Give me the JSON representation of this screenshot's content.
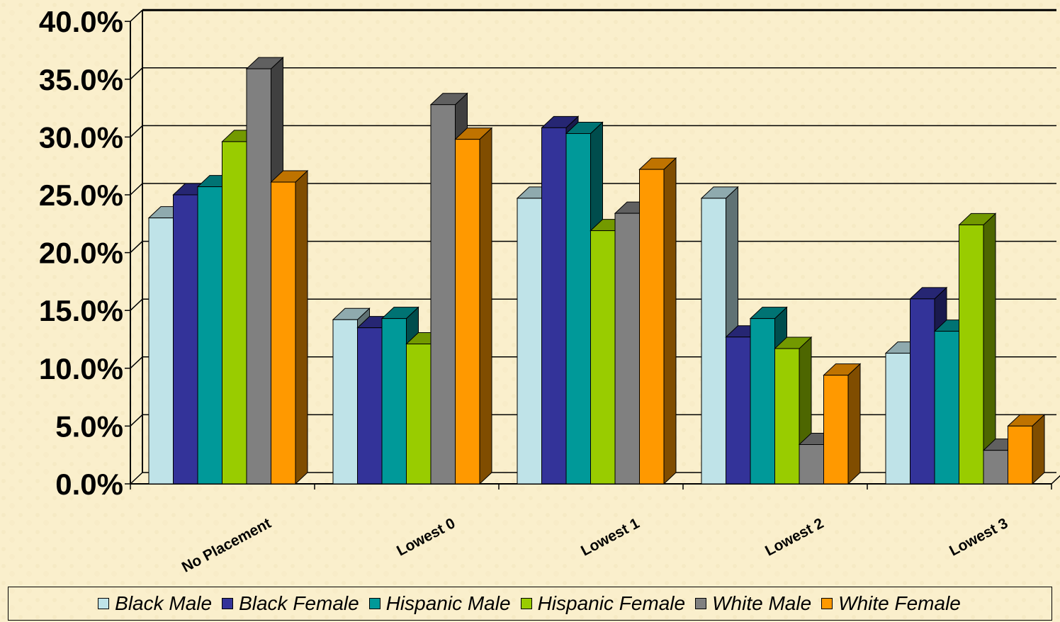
{
  "chart_data": {
    "type": "bar",
    "categories": [
      "No Placement",
      "Lowest 0",
      "Lowest 1",
      "Lowest 2",
      "Lowest 3"
    ],
    "series": [
      {
        "name": "Black Male",
        "color": "#BFE3E8",
        "values": [
          23.0,
          14.2,
          24.7,
          24.7,
          11.3
        ]
      },
      {
        "name": "Black Female",
        "color": "#333399",
        "values": [
          25.0,
          13.5,
          30.8,
          12.7,
          16.0
        ]
      },
      {
        "name": "Hispanic Male",
        "color": "#009999",
        "values": [
          25.7,
          14.3,
          30.3,
          14.3,
          13.2
        ]
      },
      {
        "name": "Hispanic Female",
        "color": "#99CC00",
        "values": [
          29.6,
          12.1,
          21.9,
          11.7,
          22.4
        ]
      },
      {
        "name": "White Male",
        "color": "#808080",
        "values": [
          35.9,
          32.8,
          23.4,
          3.4,
          2.9
        ]
      },
      {
        "name": "White Female",
        "color": "#FF9900",
        "values": [
          26.1,
          29.8,
          27.2,
          9.4,
          5.0
        ]
      }
    ],
    "y_ticks": [
      "0.0%",
      "5.0%",
      "10.0%",
      "15.0%",
      "20.0%",
      "25.0%",
      "30.0%",
      "35.0%",
      "40.0%"
    ],
    "ylim": [
      0,
      40
    ],
    "grid": true,
    "legend_position": "bottom",
    "title": "",
    "xlabel": "",
    "ylabel": ""
  }
}
